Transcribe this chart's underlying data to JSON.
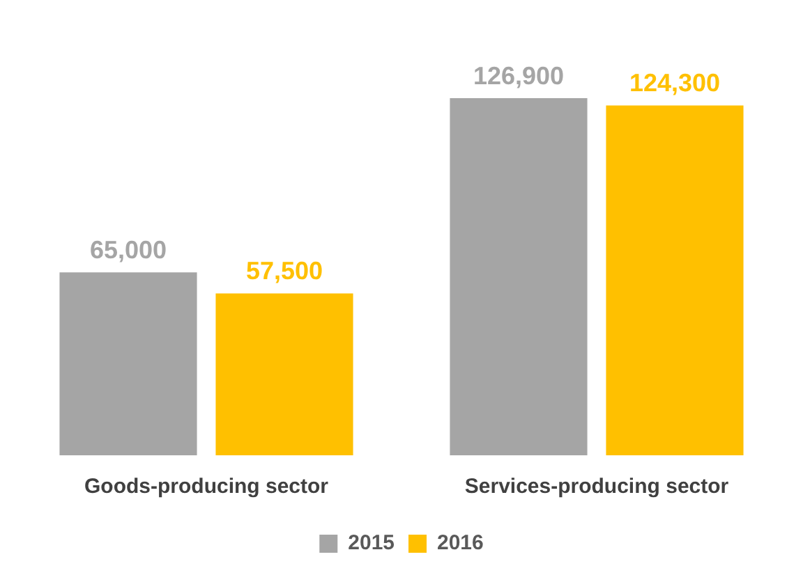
{
  "chart_data": {
    "type": "bar",
    "categories": [
      "Goods-producing sector",
      "Services-producing sector"
    ],
    "series": [
      {
        "name": "2015",
        "color": "#a5a5a5",
        "values": [
          65000,
          126900
        ],
        "value_labels": [
          "65,000",
          "126,900"
        ]
      },
      {
        "name": "2016",
        "color": "#ffc000",
        "values": [
          57500,
          124300
        ],
        "value_labels": [
          "57,500",
          "124,300"
        ]
      }
    ],
    "legend": "bottom",
    "grid": false
  }
}
